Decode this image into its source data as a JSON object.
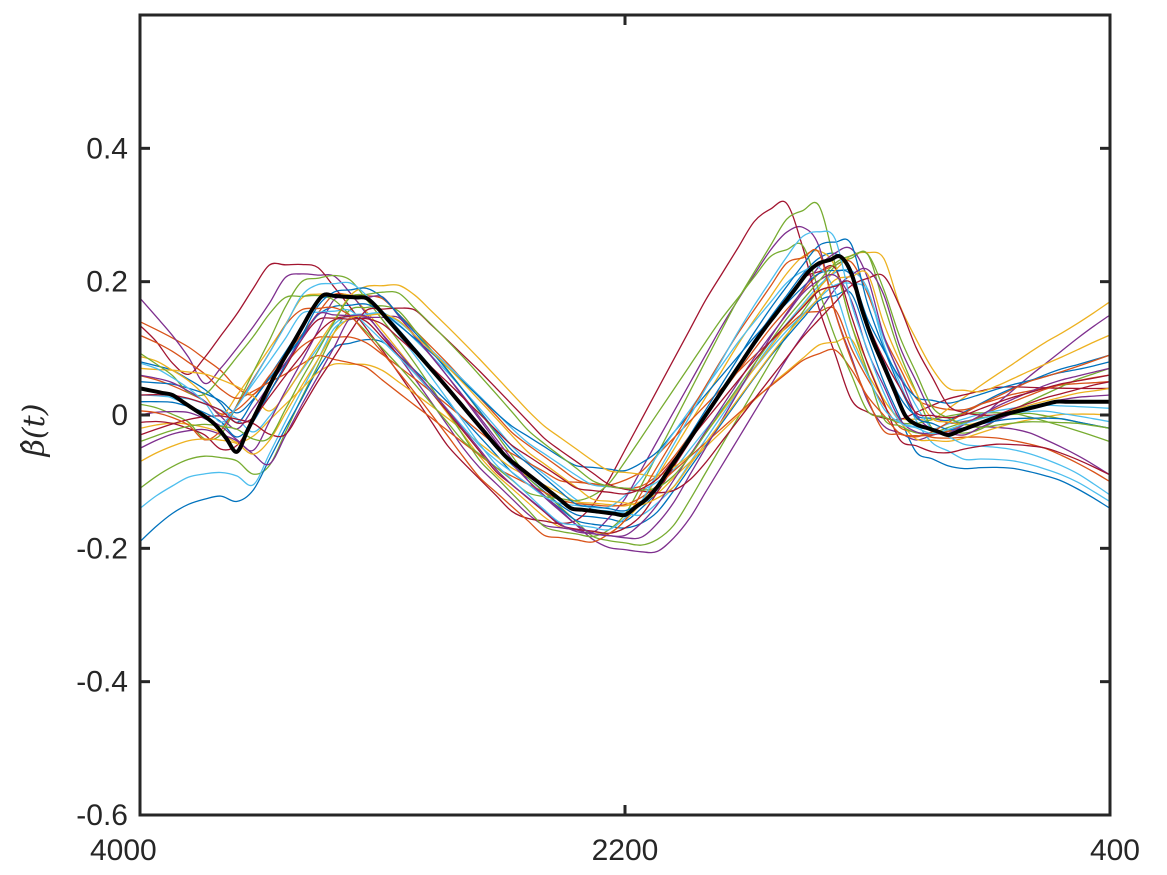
{
  "chart_data": {
    "type": "line",
    "title": "",
    "xlabel": "",
    "ylabel": "β̂(t)",
    "x_direction": "reversed",
    "xlim": [
      4000,
      400
    ],
    "ylim": [
      -0.6,
      0.6
    ],
    "xticks": [
      4000,
      2200,
      400
    ],
    "xtick_labels": [
      "4000",
      "2200",
      "400"
    ],
    "yticks": [
      -0.6,
      -0.4,
      -0.2,
      0,
      0.2,
      0.4
    ],
    "ytick_labels": [
      "-0.6",
      "-0.4",
      "-0.2",
      "0",
      "0.2",
      "0.4"
    ],
    "grid": false,
    "legend": "none",
    "mean_series": {
      "color": "#000000",
      "x": [
        4000,
        3880,
        3730,
        3640,
        3500,
        3330,
        3150,
        2900,
        2650,
        2400,
        2200,
        2100,
        1950,
        1700,
        1500,
        1380,
        1300,
        1150,
        1000,
        800,
        600,
        400
      ],
      "y": [
        0.04,
        0.03,
        -0.01,
        -0.055,
        0.06,
        0.18,
        0.175,
        0.06,
        -0.06,
        -0.14,
        -0.15,
        -0.12,
        -0.03,
        0.12,
        0.225,
        0.24,
        0.13,
        -0.01,
        -0.03,
        0.0,
        0.02,
        0.02
      ]
    },
    "series_shape": {
      "x": [
        4000,
        3880,
        3730,
        3640,
        3500,
        3330,
        3150,
        2900,
        2650,
        2400,
        2200,
        2100,
        1950,
        1700,
        1500,
        1380,
        1300,
        1150,
        1000,
        800,
        600,
        400
      ],
      "y": [
        0.04,
        0.03,
        -0.01,
        -0.055,
        0.06,
        0.18,
        0.175,
        0.06,
        -0.06,
        -0.14,
        -0.15,
        -0.12,
        -0.03,
        0.12,
        0.225,
        0.24,
        0.13,
        -0.01,
        -0.03,
        0.0,
        0.02,
        0.02
      ]
    },
    "series": [
      {
        "color": "#0072BD",
        "start": 0.08,
        "end": 0.09,
        "amp": 1.05,
        "shift": 0.0,
        "phase": 0
      },
      {
        "color": "#D95319",
        "start": 0.14,
        "end": 0.05,
        "amp": 0.9,
        "shift": 0.02,
        "phase": 40
      },
      {
        "color": "#EDB120",
        "start": 0.09,
        "end": 0.17,
        "amp": 1.1,
        "shift": -0.01,
        "phase": -60
      },
      {
        "color": "#7E2F8E",
        "start": 0.18,
        "end": -0.09,
        "amp": 1.2,
        "shift": 0.01,
        "phase": -120
      },
      {
        "color": "#77AC30",
        "start": -0.11,
        "end": 0.07,
        "amp": 1.15,
        "shift": -0.02,
        "phase": 90
      },
      {
        "color": "#4DBEEE",
        "start": -0.14,
        "end": -0.13,
        "amp": 1.0,
        "shift": 0.0,
        "phase": 60
      },
      {
        "color": "#A2142F",
        "start": 0.15,
        "end": 0.04,
        "amp": 1.25,
        "shift": 0.03,
        "phase": -200
      },
      {
        "color": "#0072BD",
        "start": -0.19,
        "end": -0.14,
        "amp": 0.95,
        "shift": -0.03,
        "phase": 30
      },
      {
        "color": "#D95319",
        "start": 0.06,
        "end": -0.1,
        "amp": 0.7,
        "shift": -0.01,
        "phase": -40
      },
      {
        "color": "#EDB120",
        "start": -0.02,
        "end": 0.0,
        "amp": 0.65,
        "shift": -0.05,
        "phase": 20
      },
      {
        "color": "#7E2F8E",
        "start": -0.05,
        "end": 0.15,
        "amp": 1.1,
        "shift": -0.04,
        "phase": 110
      },
      {
        "color": "#77AC30",
        "start": 0.02,
        "end": -0.02,
        "amp": 1.3,
        "shift": 0.02,
        "phase": -90
      },
      {
        "color": "#4DBEEE",
        "start": 0.03,
        "end": -0.12,
        "amp": 0.85,
        "shift": 0.01,
        "phase": 70
      },
      {
        "color": "#A2142F",
        "start": -0.01,
        "end": -0.09,
        "amp": 1.05,
        "shift": -0.02,
        "phase": -30
      },
      {
        "color": "#0072BD",
        "start": 0.05,
        "end": 0.08,
        "amp": 0.8,
        "shift": 0.03,
        "phase": 10
      },
      {
        "color": "#D95319",
        "start": 0.12,
        "end": 0.06,
        "amp": 0.6,
        "shift": -0.06,
        "phase": -20
      },
      {
        "color": "#EDB120",
        "start": 0.07,
        "end": 0.12,
        "amp": 0.9,
        "shift": 0.04,
        "phase": 130
      },
      {
        "color": "#7E2F8E",
        "start": 0.0,
        "end": 0.03,
        "amp": 1.15,
        "shift": -0.01,
        "phase": 50
      },
      {
        "color": "#77AC30",
        "start": 0.1,
        "end": -0.04,
        "amp": 1.0,
        "shift": 0.02,
        "phase": -150
      },
      {
        "color": "#4DBEEE",
        "start": 0.04,
        "end": 0.01,
        "amp": 0.95,
        "shift": 0.0,
        "phase": -70
      },
      {
        "color": "#A2142F",
        "start": -0.03,
        "end": 0.05,
        "amp": 0.88,
        "shift": 0.01,
        "phase": 160
      },
      {
        "color": "#0072BD",
        "start": 0.02,
        "end": -0.02,
        "amp": 1.08,
        "shift": 0.02,
        "phase": 15
      },
      {
        "color": "#D95319",
        "start": 0.01,
        "end": 0.09,
        "amp": 1.12,
        "shift": -0.02,
        "phase": -100
      },
      {
        "color": "#EDB120",
        "start": -0.07,
        "end": 0.04,
        "amp": 0.92,
        "shift": 0.0,
        "phase": 80
      },
      {
        "color": "#7E2F8E",
        "start": 0.06,
        "end": 0.07,
        "amp": 1.02,
        "shift": -0.03,
        "phase": -10
      },
      {
        "color": "#77AC30",
        "start": -0.04,
        "end": -0.02,
        "amp": 0.97,
        "shift": 0.03,
        "phase": 100
      },
      {
        "color": "#4DBEEE",
        "start": 0.08,
        "end": -0.01,
        "amp": 1.18,
        "shift": 0.01,
        "phase": -50
      },
      {
        "color": "#A2142F",
        "start": 0.03,
        "end": 0.06,
        "amp": 0.83,
        "shift": 0.0,
        "phase": 25
      }
    ]
  }
}
